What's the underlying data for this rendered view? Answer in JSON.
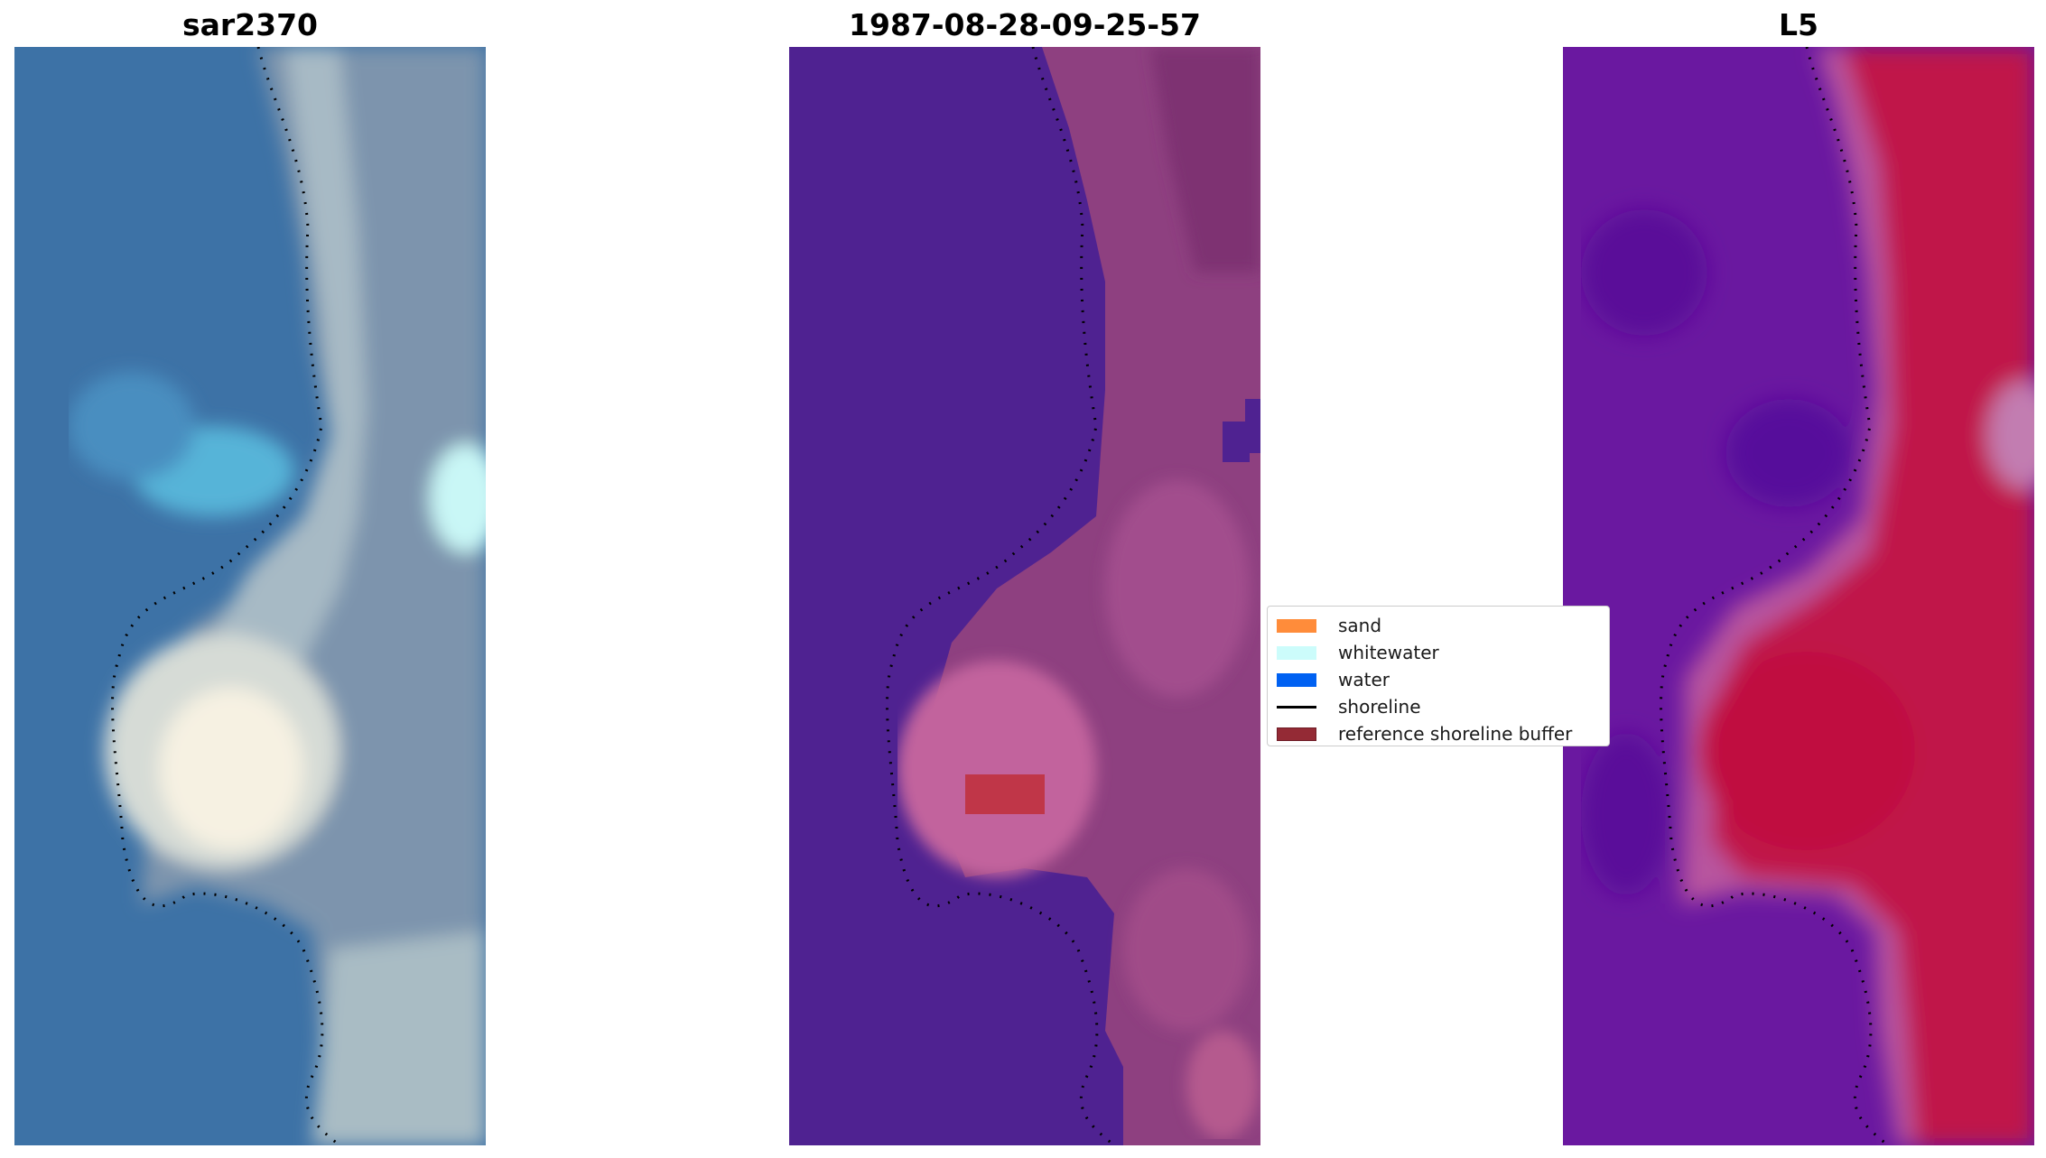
{
  "panels": [
    {
      "title": "sar2370",
      "image": "pixelated satellite true-color image of coastline",
      "colors": {
        "water": "#3f79ad",
        "shallow": "#55b3d6",
        "foam": "#f6f1e2",
        "land": "#7c94ad"
      }
    },
    {
      "title": "1987-08-28-09-25-57",
      "image": "pixelated classification overlay on coastline",
      "colors": {
        "water": "#4f2291",
        "land": "#8a3e7c",
        "buffer": "#c03648"
      }
    },
    {
      "title": "L5",
      "image": "pixelated index map of coastline",
      "colors": {
        "water": "#6a18a0",
        "land": "#c0154a",
        "edge": "#b85aa8"
      }
    }
  ],
  "legend": {
    "items": [
      {
        "label": "sand",
        "kind": "patch",
        "color": "#ff8c3a"
      },
      {
        "label": "whitewater",
        "kind": "patch",
        "color": "#ccfcfb"
      },
      {
        "label": "water",
        "kind": "patch",
        "color": "#0061f2"
      },
      {
        "label": "shoreline",
        "kind": "line",
        "color": "#000000"
      },
      {
        "label": "reference shoreline buffer",
        "kind": "patch",
        "color": "#942a35"
      }
    ]
  }
}
